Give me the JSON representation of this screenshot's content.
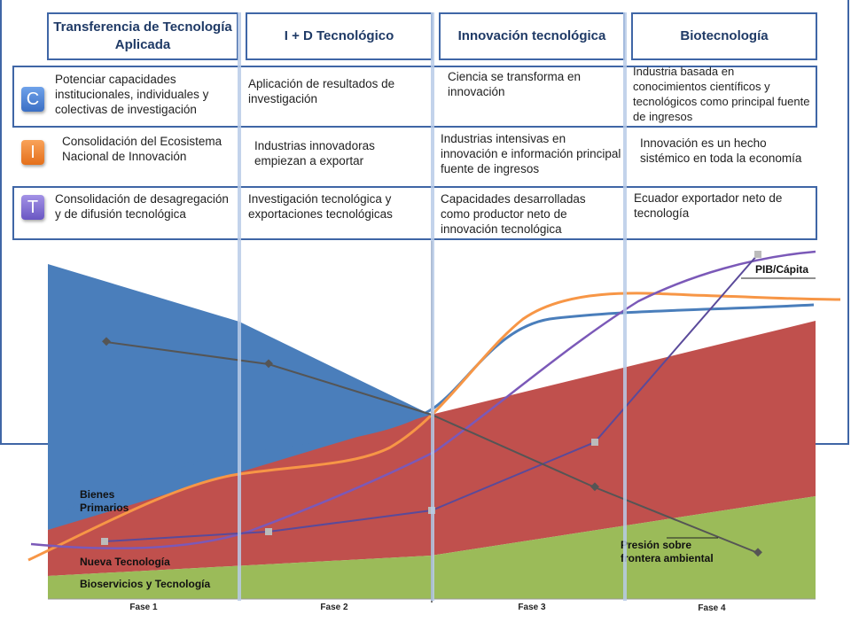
{
  "headers": [
    {
      "label": "Transferencia de Tecnología Aplicada"
    },
    {
      "label": "I + D Tecnológico"
    },
    {
      "label": "Innovación tecnológica"
    },
    {
      "label": "Biotecnología"
    }
  ],
  "rows": [
    {
      "badge": "C",
      "cells": [
        "Potenciar capacidades institucionales, individuales y colectivas de investigación",
        "Aplicación de resultados de investigación",
        "Ciencia se transforma en innovación",
        "Industria basada en conocimientos científicos y tecnológicos como principal fuente de ingresos"
      ]
    },
    {
      "badge": "I",
      "cells": [
        "Consolidación del Ecosistema Nacional de Innovación",
        "Industrias innovadoras empiezan a exportar",
        "Industrias intensivas en innovación e información principal fuente de ingresos",
        "Innovación es un hecho sistémico en toda la economía"
      ]
    },
    {
      "badge": "T",
      "cells": [
        "Consolidación de desagregación y de difusión tecnológica",
        "Investigación tecnológica y exportaciones tecnológicas",
        "Capacidades desarrolladas como productor neto de innovación tecnológica",
        "Ecuador exportador neto de tecnología"
      ]
    }
  ],
  "chart": {
    "labels": {
      "bienes": [
        "Bienes",
        "Primarios"
      ],
      "nueva": "Nueva Tecnología",
      "bioservicios": "Bioservicios y Tecnología",
      "pib": "PIB/Cápita",
      "presion": [
        "Presión sobre",
        "frontera ambiental"
      ]
    },
    "phases": [
      "Fase 1",
      "Fase 2",
      "Fase 3",
      "Fase 4"
    ],
    "colors": {
      "blue": "#4a7ebb",
      "red": "#c0504d",
      "green": "#9bbb59",
      "orange": "#f79646",
      "purple": "#7b59b8",
      "gray": "#555555"
    }
  }
}
